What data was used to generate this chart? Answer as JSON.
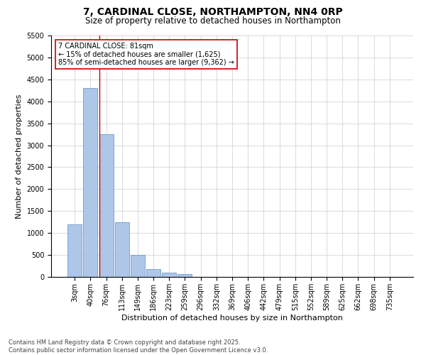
{
  "title": "7, CARDINAL CLOSE, NORTHAMPTON, NN4 0RP",
  "subtitle": "Size of property relative to detached houses in Northampton",
  "xlabel": "Distribution of detached houses by size in Northampton",
  "ylabel": "Number of detached properties",
  "categories": [
    "3sqm",
    "40sqm",
    "76sqm",
    "113sqm",
    "149sqm",
    "186sqm",
    "223sqm",
    "259sqm",
    "296sqm",
    "332sqm",
    "369sqm",
    "406sqm",
    "442sqm",
    "479sqm",
    "515sqm",
    "552sqm",
    "589sqm",
    "625sqm",
    "662sqm",
    "698sqm",
    "735sqm"
  ],
  "values": [
    1200,
    4300,
    3250,
    1250,
    500,
    175,
    100,
    60,
    0,
    0,
    0,
    0,
    0,
    0,
    0,
    0,
    0,
    0,
    0,
    0,
    0
  ],
  "bar_color": "#aec6e8",
  "bar_edge_color": "#5a8fc0",
  "vline_color": "#cc0000",
  "vline_bin": 2,
  "annotation_line1": "7 CARDINAL CLOSE: 81sqm",
  "annotation_line2": "← 15% of detached houses are smaller (1,625)",
  "annotation_line3": "85% of semi-detached houses are larger (9,362) →",
  "annotation_box_color": "#cc0000",
  "ylim": [
    0,
    5500
  ],
  "yticks": [
    0,
    500,
    1000,
    1500,
    2000,
    2500,
    3000,
    3500,
    4000,
    4500,
    5000,
    5500
  ],
  "background_color": "#ffffff",
  "grid_color": "#cccccc",
  "footer_line1": "Contains HM Land Registry data © Crown copyright and database right 2025.",
  "footer_line2": "Contains public sector information licensed under the Open Government Licence v3.0.",
  "title_fontsize": 10,
  "subtitle_fontsize": 8.5,
  "axis_label_fontsize": 8,
  "tick_fontsize": 7,
  "annotation_fontsize": 7,
  "footer_fontsize": 6,
  "ylabel_fontsize": 8
}
